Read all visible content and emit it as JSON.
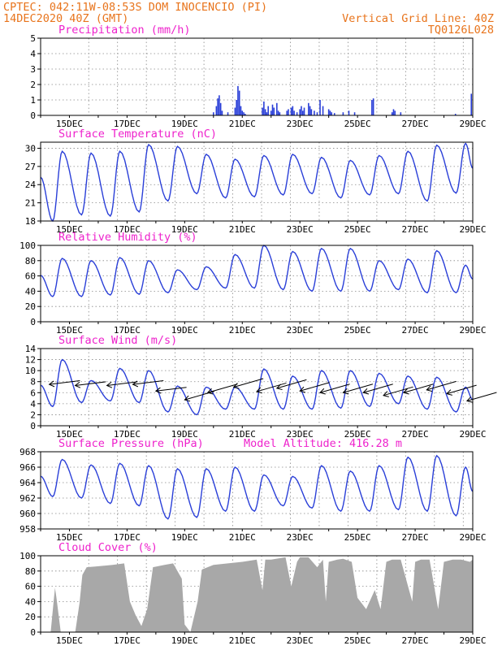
{
  "header": {
    "line1": "CPTEC:   042:11W-08:53S   DOM INOCENCIO (PI)",
    "date": "14DEC2020 40Z (GMT)",
    "grid_note": "Vertical Grid Line: 40Z",
    "code": "TQ0126L028"
  },
  "colors": {
    "header": "#e8741c",
    "title": "#ee22cc",
    "series": "#2a3fd8",
    "cloud": "#a8a8a8",
    "arrow": "#000000"
  },
  "chart_data": [
    {
      "type": "bar",
      "title": "Precipitation (mm/h)",
      "ylim": [
        0,
        5
      ],
      "yticks": [
        0,
        1,
        2,
        3,
        4,
        5
      ],
      "xlim_days": [
        14,
        29
      ],
      "xticks": [
        "15DEC",
        "17DEC",
        "19DEC",
        "21DEC",
        "23DEC",
        "25DEC",
        "27DEC",
        "29DEC"
      ],
      "x": [
        20.0,
        20.1,
        20.15,
        20.2,
        20.25,
        20.3,
        20.5,
        20.75,
        20.8,
        20.85,
        20.9,
        20.95,
        21.0,
        21.05,
        21.1,
        21.7,
        21.75,
        21.8,
        21.85,
        21.9,
        22.0,
        22.05,
        22.1,
        22.2,
        22.25,
        22.3,
        22.55,
        22.6,
        22.7,
        22.75,
        22.8,
        22.9,
        23.0,
        23.05,
        23.1,
        23.15,
        23.3,
        23.35,
        23.4,
        23.5,
        23.6,
        23.7,
        23.8,
        24.0,
        24.05,
        24.1,
        24.2,
        24.5,
        24.7,
        24.9,
        25.5,
        25.55,
        26.2,
        26.25,
        26.3,
        26.5,
        28.4,
        28.95
      ],
      "values": [
        0.2,
        0.6,
        1.1,
        1.3,
        0.8,
        0.3,
        0.2,
        0.5,
        1.0,
        1.9,
        1.6,
        0.6,
        0.3,
        0.2,
        0.1,
        0.5,
        0.9,
        0.4,
        0.2,
        0.6,
        0.3,
        0.7,
        0.5,
        0.8,
        0.3,
        0.2,
        0.3,
        0.4,
        0.5,
        0.6,
        0.3,
        0.2,
        0.4,
        0.6,
        0.3,
        0.5,
        0.8,
        0.6,
        0.4,
        0.3,
        0.2,
        1.0,
        0.6,
        0.4,
        0.3,
        0.2,
        0.15,
        0.2,
        0.3,
        0.2,
        1.0,
        1.1,
        0.2,
        0.4,
        0.3,
        0.2,
        0.1,
        1.4
      ]
    },
    {
      "type": "line",
      "title": "Surface Temperature (nC)",
      "ylim": [
        18,
        31
      ],
      "yticks": [
        18,
        21,
        24,
        27,
        30
      ],
      "xlim_days": [
        14,
        29
      ],
      "xticks": [
        "15DEC",
        "17DEC",
        "19DEC",
        "21DEC",
        "23DEC",
        "25DEC",
        "27DEC",
        "29DEC"
      ],
      "daily_max": [
        29.5,
        29.2,
        29.5,
        30.6,
        30.3,
        29.0,
        28.2,
        28.8,
        29.0,
        28.5,
        28.0,
        28.8,
        29.5,
        30.5,
        30.8
      ],
      "daily_min": [
        18.0,
        19.0,
        18.8,
        19.5,
        21.3,
        22.5,
        21.8,
        22.0,
        22.3,
        22.5,
        21.8,
        22.3,
        22.5,
        21.3,
        22.6
      ]
    },
    {
      "type": "line",
      "title": "Relative Humidity (%)",
      "ylim": [
        0,
        100
      ],
      "yticks": [
        0,
        20,
        40,
        60,
        80,
        100
      ],
      "xlim_days": [
        14,
        29
      ],
      "xticks": [
        "15DEC",
        "17DEC",
        "19DEC",
        "21DEC",
        "23DEC",
        "25DEC",
        "27DEC",
        "29DEC"
      ],
      "daily_max": [
        83,
        80,
        84,
        80,
        68,
        72,
        88,
        100,
        92,
        96,
        96,
        80,
        82,
        93,
        74
      ],
      "daily_min": [
        33,
        33,
        35,
        36,
        38,
        42,
        44,
        44,
        42,
        40,
        40,
        40,
        42,
        38,
        38
      ]
    },
    {
      "type": "line",
      "title": "Surface Wind (m/s)",
      "ylim": [
        0,
        14
      ],
      "yticks": [
        0,
        2,
        4,
        6,
        8,
        10,
        12,
        14
      ],
      "xlim_days": [
        14,
        29
      ],
      "xticks": [
        "15DEC",
        "17DEC",
        "19DEC",
        "21DEC",
        "23DEC",
        "25DEC",
        "27DEC",
        "29DEC"
      ],
      "daily_max": [
        12.0,
        8.2,
        10.4,
        10.0,
        7.2,
        7.0,
        7.0,
        10.3,
        9.0,
        10.0,
        10.0,
        9.5,
        9.0,
        8.8,
        7.0
      ],
      "daily_min": [
        3.5,
        4.2,
        4.5,
        4.2,
        2.5,
        2.0,
        3.0,
        3.0,
        3.0,
        3.0,
        3.2,
        3.5,
        4.0,
        3.0,
        2.5
      ],
      "arrows": {
        "x": [
          14.3,
          15.2,
          16.3,
          17.2,
          18.0,
          19.0,
          19.8,
          20.7,
          21.5,
          22.2,
          23.0,
          23.7,
          24.5,
          25.2,
          25.9,
          26.6,
          27.4,
          28.1,
          28.8
        ],
        "y": [
          7.5,
          7.3,
          7.3,
          7.5,
          6.3,
          4.7,
          6.0,
          7.0,
          6.2,
          6.8,
          6.3,
          6.0,
          6.0,
          6.0,
          5.5,
          6.0,
          6.5,
          5.8,
          4.5
        ]
      }
    },
    {
      "type": "line",
      "title": "Surface Pressure (hPa)",
      "annotation": "Model Altitude: 416.28 m",
      "ylim": [
        958,
        968
      ],
      "yticks": [
        958,
        960,
        962,
        964,
        966,
        968
      ],
      "xlim_days": [
        14,
        29
      ],
      "xticks": [
        "15DEC",
        "17DEC",
        "19DEC",
        "21DEC",
        "23DEC",
        "25DEC",
        "27DEC",
        "29DEC"
      ],
      "daily_max": [
        967.0,
        966.3,
        966.5,
        966.2,
        965.8,
        965.8,
        966.0,
        965.0,
        964.8,
        966.2,
        965.5,
        966.2,
        967.3,
        967.5,
        966.0
      ],
      "daily_min": [
        962.2,
        962.0,
        961.3,
        961.0,
        959.3,
        959.5,
        960.3,
        960.3,
        961.0,
        960.7,
        960.3,
        960.3,
        960.5,
        960.3,
        959.7
      ]
    },
    {
      "type": "area",
      "title": "Cloud Cover (%)",
      "ylim": [
        0,
        100
      ],
      "yticks": [
        0,
        20,
        40,
        60,
        80,
        100
      ],
      "xlim_days": [
        14,
        29
      ],
      "xticks": [
        "15DEC",
        "17DEC",
        "19DEC",
        "21DEC",
        "23DEC",
        "25DEC",
        "27DEC",
        "29DEC"
      ],
      "x": [
        14.0,
        14.2,
        14.35,
        14.45,
        14.5,
        14.55,
        14.7,
        15.2,
        15.35,
        15.45,
        15.6,
        15.9,
        16.5,
        16.9,
        17.1,
        17.3,
        17.5,
        17.7,
        17.9,
        18.3,
        18.6,
        18.9,
        19.0,
        19.2,
        19.45,
        19.6,
        20.0,
        20.5,
        21.0,
        21.5,
        21.7,
        21.8,
        22.0,
        22.5,
        22.7,
        22.9,
        23.0,
        23.3,
        23.6,
        23.8,
        23.9,
        24.0,
        24.3,
        24.5,
        24.8,
        25.0,
        25.3,
        25.6,
        25.8,
        26.0,
        26.2,
        26.5,
        26.9,
        27.0,
        27.2,
        27.5,
        27.8,
        28.0,
        28.3,
        28.6,
        28.9,
        29.0
      ],
      "values": [
        0,
        0,
        0,
        40,
        58,
        45,
        0,
        0,
        38,
        75,
        85,
        86,
        88,
        90,
        40,
        22,
        8,
        30,
        85,
        88,
        90,
        70,
        10,
        0,
        40,
        82,
        88,
        90,
        92,
        95,
        55,
        95,
        95,
        98,
        60,
        92,
        98,
        98,
        85,
        95,
        40,
        92,
        95,
        96,
        92,
        45,
        30,
        55,
        30,
        92,
        95,
        95,
        40,
        92,
        95,
        95,
        30,
        92,
        95,
        95,
        92,
        95
      ]
    }
  ]
}
